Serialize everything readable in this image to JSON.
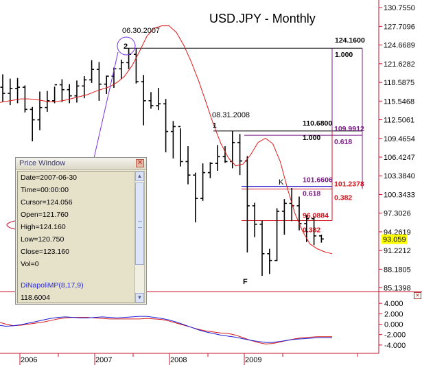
{
  "chart_data": {
    "type": "ohlc",
    "title": "USD.JPY - Monthly",
    "y_ticks": [
      "130.7550",
      "127.7096",
      "124.6689",
      "121.6282",
      "118.5875",
      "115.5468",
      "112.5061",
      "109.4654",
      "106.4247",
      "103.3840",
      "100.3433",
      "97.3026",
      "94.2619",
      "91.2212",
      "88.1805",
      "85.1398"
    ],
    "ylim": [
      84.2,
      132.0
    ],
    "last_price": "93.059",
    "x_labels": [
      "2006",
      "2007",
      "2008",
      "2009"
    ],
    "bars": [
      {
        "o": 117.8,
        "h": 119.9,
        "l": 115.4,
        "c": 116.8
      },
      {
        "o": 116.8,
        "h": 119.2,
        "l": 114.9,
        "c": 117.6
      },
      {
        "o": 117.6,
        "h": 119.3,
        "l": 115.2,
        "c": 117.8
      },
      {
        "o": 117.8,
        "h": 118.1,
        "l": 113.7,
        "c": 114.2
      },
      {
        "o": 114.2,
        "h": 114.6,
        "l": 109.0,
        "c": 112.5
      },
      {
        "o": 112.5,
        "h": 117.1,
        "l": 110.8,
        "c": 114.5
      },
      {
        "o": 114.5,
        "h": 117.2,
        "l": 113.8,
        "c": 115.6
      },
      {
        "o": 115.6,
        "h": 117.9,
        "l": 115.2,
        "c": 118.2
      },
      {
        "o": 118.2,
        "h": 119.1,
        "l": 115.4,
        "c": 117.4
      },
      {
        "o": 117.4,
        "h": 118.3,
        "l": 115.2,
        "c": 116.4
      },
      {
        "o": 116.4,
        "h": 118.9,
        "l": 115.3,
        "c": 118.0
      },
      {
        "o": 118.0,
        "h": 119.6,
        "l": 116.0,
        "c": 119.0
      },
      {
        "o": 119.0,
        "h": 122.2,
        "l": 118.5,
        "c": 120.7
      },
      {
        "o": 120.7,
        "h": 121.9,
        "l": 115.6,
        "c": 118.3
      },
      {
        "o": 118.3,
        "h": 119.7,
        "l": 116.7,
        "c": 119.6
      },
      {
        "o": 119.6,
        "h": 121.0,
        "l": 117.7,
        "c": 120.8
      },
      {
        "o": 120.8,
        "h": 122.3,
        "l": 119.1,
        "c": 121.8
      },
      {
        "o": 121.8,
        "h": 124.16,
        "l": 120.75,
        "c": 123.16
      },
      {
        "o": 123.16,
        "h": 124.1,
        "l": 118.4,
        "c": 118.7
      },
      {
        "o": 118.7,
        "h": 119.8,
        "l": 111.6,
        "c": 115.6
      },
      {
        "o": 115.6,
        "h": 117.0,
        "l": 114.3,
        "c": 114.8
      },
      {
        "o": 114.8,
        "h": 117.7,
        "l": 114.1,
        "c": 115.1
      },
      {
        "o": 115.1,
        "h": 115.9,
        "l": 107.2,
        "c": 110.6
      },
      {
        "o": 110.6,
        "h": 112.3,
        "l": 106.2,
        "c": 111.4
      },
      {
        "o": 111.4,
        "h": 111.1,
        "l": 104.9,
        "c": 105.7
      },
      {
        "o": 105.7,
        "h": 108.2,
        "l": 102.0,
        "c": 103.5
      },
      {
        "o": 103.5,
        "h": 103.9,
        "l": 95.8,
        "c": 99.7
      },
      {
        "o": 99.7,
        "h": 105.4,
        "l": 99.3,
        "c": 103.9
      },
      {
        "o": 103.9,
        "h": 105.6,
        "l": 103.0,
        "c": 105.4
      },
      {
        "o": 105.4,
        "h": 108.4,
        "l": 104.2,
        "c": 106.5
      },
      {
        "o": 106.5,
        "h": 108.2,
        "l": 105.5,
        "c": 105.7
      },
      {
        "o": 105.7,
        "h": 110.68,
        "l": 104.6,
        "c": 108.8
      },
      {
        "o": 108.8,
        "h": 110.2,
        "l": 103.5,
        "c": 105.8
      },
      {
        "o": 105.8,
        "h": 106.6,
        "l": 90.9,
        "c": 98.5
      },
      {
        "o": 98.5,
        "h": 99.0,
        "l": 93.4,
        "c": 95.5
      },
      {
        "o": 95.5,
        "h": 96.1,
        "l": 87.1,
        "c": 90.7
      },
      {
        "o": 90.7,
        "h": 91.5,
        "l": 87.4,
        "c": 89.6
      },
      {
        "o": 89.6,
        "h": 98.1,
        "l": 89.5,
        "c": 97.6
      },
      {
        "o": 97.6,
        "h": 99.6,
        "l": 93.8,
        "c": 98.9
      },
      {
        "o": 98.9,
        "h": 101.4,
        "l": 96.0,
        "c": 98.5
      },
      {
        "o": 98.5,
        "h": 100.0,
        "l": 94.5,
        "c": 95.6
      },
      {
        "o": 95.6,
        "h": 97.0,
        "l": 92.6,
        "c": 96.4
      },
      {
        "o": 96.4,
        "h": 96.8,
        "l": 92.1,
        "c": 93.6
      },
      {
        "o": 93.6,
        "h": 93.8,
        "l": 92.5,
        "c": 93.1
      }
    ],
    "ma": [
      115.3,
      115.5,
      115.7,
      115.9,
      115.9,
      115.8,
      115.6,
      115.4,
      115.5,
      115.7,
      116.0,
      116.3,
      116.6,
      117.1,
      117.5,
      117.9,
      118.6,
      119.6,
      121.3,
      123.6,
      126.1,
      127.4,
      127.8,
      127.8,
      126.7,
      124.6,
      121.9,
      118.8,
      115.3,
      111.7,
      108.6,
      106.3,
      105.0,
      105.3,
      106.8,
      108.8,
      109.5,
      108.6,
      105.7,
      101.2,
      97.2,
      94.4,
      92.3,
      91.5,
      91.0,
      90.7
    ],
    "oscillator": {
      "y_ticks": [
        "4.000",
        "2.000",
        "0.000",
        "-2.000",
        "-4.000"
      ],
      "ylim": [
        -5.2,
        5.2
      ],
      "blue": [
        -0.2,
        -0.4,
        -0.3,
        -0.1,
        0.2,
        0.5,
        0.8,
        1.1,
        1.3,
        1.4,
        1.3,
        1.2,
        1.2,
        1.3,
        1.4,
        1.3,
        1.2,
        1.3,
        1.4,
        1.5,
        1.5,
        1.3,
        1.1,
        0.8,
        0.4,
        -0.1,
        -0.6,
        -1.1,
        -1.5,
        -1.8,
        -2.1,
        -2.3,
        -2.5,
        -2.8,
        -3.1,
        -3.3,
        -3.5,
        -3.5,
        -3.3,
        -3.1,
        -2.9,
        -2.8,
        -2.7,
        -2.6,
        -2.6,
        -2.6
      ],
      "red": [
        0.4,
        0.0,
        -0.3,
        -0.2,
        0.0,
        0.2,
        0.4,
        0.7,
        1.0,
        1.2,
        1.3,
        1.3,
        1.3,
        1.2,
        1.1,
        1.0,
        1.0,
        1.0,
        1.0,
        1.0,
        1.1,
        1.0,
        0.9,
        0.6,
        0.2,
        -0.2,
        -0.6,
        -1.0,
        -1.3,
        -1.5,
        -1.7,
        -1.8,
        -2.1,
        -2.6,
        -3.1,
        -3.5,
        -3.8,
        -3.7,
        -3.4,
        -3.1,
        -2.8,
        -2.6,
        -2.5,
        -2.4,
        -2.4,
        -2.4
      ]
    },
    "annotations": [
      {
        "text": "06.30.2007",
        "pivot_label": "2"
      },
      {
        "text": "08.31.2008",
        "pivot_label": "1"
      },
      {
        "text": "K"
      },
      {
        "text": "F"
      }
    ],
    "levels": [
      {
        "price": 124.16,
        "text": "124.1600",
        "ratio": "1.000",
        "color": "#000000"
      },
      {
        "price": 110.68,
        "text": "110.6800",
        "ratio": "1.000",
        "color": "#000000"
      },
      {
        "price": 109.9912,
        "text": "109.9912",
        "ratio": "0.618",
        "color": "#7a1f86"
      },
      {
        "price": 101.6606,
        "text": "101.6606",
        "ratio": "0.618",
        "color": "#7a1f86"
      },
      {
        "price": 101.2378,
        "text": "101.2378",
        "ratio": "0.382",
        "color": "#d1121b"
      },
      {
        "price": 96.0884,
        "text": "96.0884",
        "ratio": "0.382",
        "color": "#d1121b"
      }
    ]
  },
  "price_window": {
    "title": "Price Window",
    "rows": [
      "Date=2007-06-30",
      "Time=00:00:00",
      "Cursor=124.056",
      "Open=121.760",
      "High=124.160",
      "Low=120.750",
      "Close=123.160",
      "Vol=0"
    ],
    "indicator_name": "DiNapoliMP(8,17,9)",
    "indicator_value": "118.6004"
  },
  "colors": {
    "price": "#000000",
    "ma": "#e01818",
    "axis_red": "#c8102e",
    "oscillator_blue": "#1b1bd8",
    "oscillator_red": "#d81818",
    "purple": "#7a2fe0",
    "last_price_bg": "#ffff00"
  }
}
